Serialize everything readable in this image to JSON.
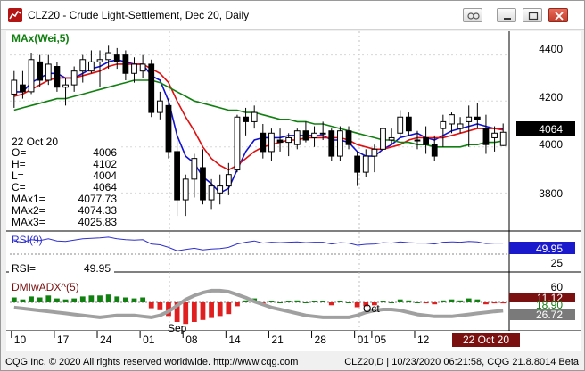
{
  "window": {
    "title": "CLZ20 - Crude Light-Settlement, Dec 20, Daily"
  },
  "status": {
    "left": "CQG Inc. © 2020 All rights reserved worldwide. http://www.cqg.com",
    "right": "CLZ20,D | 10/23/2020 06:21:58, CQG 21.8.8014 Beta"
  },
  "colors": {
    "up_candle": "#ffffff",
    "down_candle": "#000000",
    "ma1": "#1010d0",
    "ma2": "#e01010",
    "ma3": "#108010",
    "rsi_line": "#2f2fd0",
    "adx_line": "#a0a0a0",
    "adx_line_dark": "#7a1010",
    "dmi_plus": "#e02020",
    "dmi_minus": "#108010",
    "price_tag_bg": "#000000",
    "rsi_tag_bg": "#1a1acc",
    "dmi_tag_bg": "#7a1010"
  },
  "panes": {
    "price": {
      "study_label": "MAx(Wei,5)",
      "last_price": "4064",
      "axis_ticks": [
        "4400",
        "4200",
        "4000",
        "3800"
      ]
    },
    "rsi": {
      "study_label": "RSI(9)",
      "value_tag": "49.95",
      "axis_ticks": [
        "25"
      ],
      "readout_label": "RSI=",
      "readout_value": "49.95"
    },
    "dmi": {
      "study_label": "DMIwADX^(5)",
      "axis_ticks": [
        "60"
      ],
      "tags": [
        "11.12",
        "26.72"
      ],
      "partial_tag": "18.90"
    }
  },
  "readout": {
    "date": "22 Oct 20",
    "rows": [
      {
        "label": "O=",
        "value": "4006"
      },
      {
        "label": "H=",
        "value": "4102"
      },
      {
        "label": "L=",
        "value": "4004"
      },
      {
        "label": "C=",
        "value": "4064"
      },
      {
        "label": "MAx1=",
        "value": "4077.73"
      },
      {
        "label": "MAx2=",
        "value": "4074.33"
      },
      {
        "label": "MAx3=",
        "value": "4025.83"
      }
    ]
  },
  "time_axis": {
    "month_labels": [
      "Sep",
      "Oct"
    ],
    "day_labels": [
      "10",
      "17",
      "24",
      "01",
      "08",
      "14",
      "21",
      "28",
      "01",
      "05",
      "12"
    ],
    "current_label": "22 Oct 20"
  },
  "chart_data": {
    "type": "candlestick",
    "symbol": "CLZ20",
    "timeframe": "Daily",
    "ylim": [
      3650,
      4480
    ],
    "candles": [
      {
        "o": 4230,
        "h": 4330,
        "l": 4170,
        "c": 4290
      },
      {
        "o": 4270,
        "h": 4330,
        "l": 4210,
        "c": 4240
      },
      {
        "o": 4240,
        "h": 4410,
        "l": 4230,
        "c": 4380
      },
      {
        "o": 4370,
        "h": 4400,
        "l": 4260,
        "c": 4290
      },
      {
        "o": 4290,
        "h": 4400,
        "l": 4270,
        "c": 4360
      },
      {
        "o": 4350,
        "h": 4370,
        "l": 4240,
        "c": 4260
      },
      {
        "o": 4260,
        "h": 4300,
        "l": 4180,
        "c": 4270
      },
      {
        "o": 4270,
        "h": 4350,
        "l": 4240,
        "c": 4330
      },
      {
        "o": 4330,
        "h": 4400,
        "l": 4280,
        "c": 4380
      },
      {
        "o": 4330,
        "h": 4420,
        "l": 4320,
        "c": 4370
      },
      {
        "o": 4370,
        "h": 4420,
        "l": 4260,
        "c": 4380
      },
      {
        "o": 4380,
        "h": 4440,
        "l": 4340,
        "c": 4410
      },
      {
        "o": 4400,
        "h": 4430,
        "l": 4340,
        "c": 4370
      },
      {
        "o": 4400,
        "h": 4420,
        "l": 4290,
        "c": 4320
      },
      {
        "o": 4320,
        "h": 4390,
        "l": 4280,
        "c": 4360
      },
      {
        "o": 4330,
        "h": 4400,
        "l": 4300,
        "c": 4360
      },
      {
        "o": 4360,
        "h": 4380,
        "l": 4130,
        "c": 4150
      },
      {
        "o": 4150,
        "h": 4240,
        "l": 4120,
        "c": 4200
      },
      {
        "o": 4180,
        "h": 4210,
        "l": 3950,
        "c": 3980
      },
      {
        "o": 3980,
        "h": 4030,
        "l": 3700,
        "c": 3770
      },
      {
        "o": 3770,
        "h": 3880,
        "l": 3700,
        "c": 3860
      },
      {
        "o": 3860,
        "h": 3970,
        "l": 3780,
        "c": 3950
      },
      {
        "o": 3910,
        "h": 3990,
        "l": 3750,
        "c": 3770
      },
      {
        "o": 3770,
        "h": 3860,
        "l": 3730,
        "c": 3830
      },
      {
        "o": 3800,
        "h": 3880,
        "l": 3750,
        "c": 3830
      },
      {
        "o": 3830,
        "h": 3930,
        "l": 3790,
        "c": 3880
      },
      {
        "o": 3900,
        "h": 4140,
        "l": 3890,
        "c": 4130
      },
      {
        "o": 4130,
        "h": 4170,
        "l": 4050,
        "c": 4110
      },
      {
        "o": 4110,
        "h": 4180,
        "l": 4080,
        "c": 4150
      },
      {
        "o": 4060,
        "h": 4100,
        "l": 3950,
        "c": 3980
      },
      {
        "o": 3980,
        "h": 4080,
        "l": 3940,
        "c": 4060
      },
      {
        "o": 4030,
        "h": 4080,
        "l": 3980,
        "c": 4020
      },
      {
        "o": 4020,
        "h": 4060,
        "l": 3960,
        "c": 4040
      },
      {
        "o": 4010,
        "h": 4080,
        "l": 3990,
        "c": 4070
      },
      {
        "o": 4070,
        "h": 4110,
        "l": 4020,
        "c": 4030
      },
      {
        "o": 4040,
        "h": 4090,
        "l": 4000,
        "c": 4060
      },
      {
        "o": 4060,
        "h": 4110,
        "l": 4030,
        "c": 4060
      },
      {
        "o": 4070,
        "h": 4080,
        "l": 3940,
        "c": 3960
      },
      {
        "o": 3960,
        "h": 4090,
        "l": 3940,
        "c": 4070
      },
      {
        "o": 4070,
        "h": 4090,
        "l": 3990,
        "c": 4010
      },
      {
        "o": 3960,
        "h": 3980,
        "l": 3830,
        "c": 3890
      },
      {
        "o": 3890,
        "h": 3990,
        "l": 3870,
        "c": 3960
      },
      {
        "o": 3960,
        "h": 4010,
        "l": 3890,
        "c": 3990
      },
      {
        "o": 3990,
        "h": 4100,
        "l": 3980,
        "c": 4080
      },
      {
        "o": 4030,
        "h": 4080,
        "l": 4010,
        "c": 4040
      },
      {
        "o": 4060,
        "h": 4160,
        "l": 4040,
        "c": 4130
      },
      {
        "o": 4130,
        "h": 4150,
        "l": 4050,
        "c": 4070
      },
      {
        "o": 4030,
        "h": 4070,
        "l": 3990,
        "c": 4030
      },
      {
        "o": 4040,
        "h": 4090,
        "l": 3970,
        "c": 4010
      },
      {
        "o": 4010,
        "h": 4050,
        "l": 3940,
        "c": 3960
      },
      {
        "o": 4080,
        "h": 4140,
        "l": 4000,
        "c": 4110
      },
      {
        "o": 4100,
        "h": 4150,
        "l": 4060,
        "c": 4140
      },
      {
        "o": 4080,
        "h": 4130,
        "l": 4060,
        "c": 4100
      },
      {
        "o": 4110,
        "h": 4180,
        "l": 4000,
        "c": 4130
      },
      {
        "o": 4130,
        "h": 4190,
        "l": 4080,
        "c": 4120
      },
      {
        "o": 4080,
        "h": 4140,
        "l": 3970,
        "c": 4010
      },
      {
        "o": 4040,
        "h": 4090,
        "l": 3980,
        "c": 4060
      },
      {
        "o": 4006,
        "h": 4102,
        "l": 4004,
        "c": 4064
      }
    ],
    "series": [
      {
        "name": "MAx1",
        "values": [
          4240,
          4240,
          4280,
          4300,
          4320,
          4320,
          4300,
          4300,
          4320,
          4340,
          4350,
          4370,
          4380,
          4370,
          4360,
          4360,
          4310,
          4290,
          4200,
          4050,
          3960,
          3930,
          3870,
          3840,
          3800,
          3820,
          3900,
          3980,
          4030,
          4040,
          4040,
          4040,
          4050,
          4050,
          4050,
          4050,
          4050,
          4030,
          4030,
          4020,
          3980,
          3960,
          3960,
          3990,
          4010,
          4040,
          4050,
          4060,
          4040,
          4030,
          4050,
          4070,
          4080,
          4090,
          4100,
          4090,
          4080,
          4078
        ]
      },
      {
        "name": "MAx2",
        "values": [
          4220,
          4230,
          4250,
          4270,
          4290,
          4300,
          4300,
          4300,
          4310,
          4320,
          4330,
          4350,
          4360,
          4360,
          4360,
          4360,
          4340,
          4320,
          4280,
          4200,
          4130,
          4070,
          4000,
          3950,
          3920,
          3900,
          3920,
          3950,
          3980,
          4000,
          4010,
          4020,
          4030,
          4030,
          4040,
          4040,
          4040,
          4040,
          4040,
          4030,
          4010,
          4000,
          3990,
          3990,
          4000,
          4010,
          4030,
          4040,
          4040,
          4040,
          4040,
          4050,
          4060,
          4070,
          4080,
          4080,
          4080,
          4074
        ]
      },
      {
        "name": "MAx3",
        "values": [
          4160,
          4170,
          4180,
          4190,
          4200,
          4210,
          4210,
          4220,
          4230,
          4240,
          4250,
          4260,
          4270,
          4280,
          4290,
          4290,
          4290,
          4280,
          4260,
          4240,
          4220,
          4200,
          4190,
          4180,
          4170,
          4160,
          4160,
          4150,
          4150,
          4140,
          4130,
          4120,
          4120,
          4110,
          4110,
          4100,
          4100,
          4090,
          4080,
          4070,
          4060,
          4050,
          4040,
          4030,
          4030,
          4020,
          4020,
          4010,
          4010,
          4000,
          4000,
          4000,
          4000,
          4010,
          4010,
          4020,
          4020,
          4026
        ]
      }
    ],
    "rsi": [
      55,
      52,
      58,
      56,
      60,
      55,
      54,
      57,
      60,
      61,
      62,
      64,
      60,
      58,
      57,
      58,
      48,
      46,
      40,
      32,
      35,
      38,
      34,
      36,
      37,
      40,
      48,
      52,
      55,
      50,
      52,
      51,
      52,
      53,
      51,
      52,
      52,
      48,
      51,
      50,
      45,
      47,
      48,
      51,
      50,
      53,
      51,
      50,
      50,
      48,
      52,
      53,
      52,
      54,
      53,
      49,
      50,
      49.95
    ],
    "adx": [
      30,
      29,
      28,
      27,
      26,
      25,
      24,
      23,
      22,
      21,
      20,
      21,
      22,
      22,
      22,
      21,
      20,
      22,
      26,
      32,
      38,
      42,
      45,
      47,
      47,
      46,
      43,
      40,
      36,
      33,
      30,
      28,
      26,
      24,
      22,
      21,
      20,
      20,
      20,
      20,
      22,
      25,
      27,
      28,
      28,
      27,
      25,
      23,
      22,
      21,
      21,
      21,
      22,
      23,
      24,
      25,
      26,
      26.72
    ],
    "dmi_osc": [
      5,
      3,
      6,
      5,
      7,
      4,
      3,
      4,
      6,
      7,
      7,
      8,
      6,
      5,
      4,
      5,
      -6,
      -8,
      -14,
      -20,
      -22,
      -20,
      -18,
      -16,
      -14,
      -12,
      -4,
      2,
      4,
      -2,
      1,
      0,
      1,
      2,
      0,
      1,
      1,
      -3,
      1,
      0,
      -5,
      -4,
      -3,
      1,
      0,
      3,
      2,
      0,
      -1,
      -2,
      2,
      3,
      2,
      4,
      3,
      -2,
      -1,
      -1
    ]
  }
}
